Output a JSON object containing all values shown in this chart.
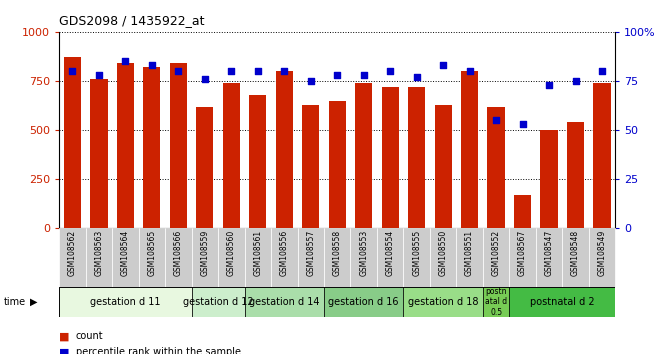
{
  "title": "GDS2098 / 1435922_at",
  "categories": [
    "GSM108562",
    "GSM108563",
    "GSM108564",
    "GSM108565",
    "GSM108566",
    "GSM108559",
    "GSM108560",
    "GSM108561",
    "GSM108556",
    "GSM108557",
    "GSM108558",
    "GSM108553",
    "GSM108554",
    "GSM108555",
    "GSM108550",
    "GSM108551",
    "GSM108552",
    "GSM108567",
    "GSM108547",
    "GSM108548",
    "GSM108549"
  ],
  "counts": [
    870,
    760,
    840,
    820,
    840,
    620,
    740,
    680,
    800,
    630,
    650,
    740,
    720,
    720,
    630,
    800,
    620,
    170,
    500,
    540,
    740
  ],
  "percentile": [
    80,
    78,
    85,
    83,
    80,
    76,
    80,
    80,
    80,
    75,
    78,
    78,
    80,
    77,
    83,
    80,
    55,
    53,
    73,
    75,
    80
  ],
  "group_labels": [
    "gestation d 11",
    "gestation d 12",
    "gestation d 14",
    "gestation d 16",
    "gestation d 18",
    "postn\natal d\n0.5",
    "postnatal d 2"
  ],
  "group_spans": [
    5,
    2,
    3,
    3,
    3,
    1,
    4
  ],
  "group_colors": [
    "#e8f8e8",
    "#ccf0cc",
    "#aae8aa",
    "#88e088",
    "#66d866",
    "#44cc44",
    "#22bb22"
  ],
  "bar_color": "#cc2200",
  "dot_color": "#0000cc",
  "ylim_left": [
    0,
    1000
  ],
  "ylim_right": [
    0,
    100
  ],
  "yticks_left": [
    0,
    250,
    500,
    750,
    1000
  ],
  "ytick_labels_left": [
    "0",
    "250",
    "500",
    "750",
    "1000"
  ],
  "yticks_right": [
    0,
    25,
    50,
    75,
    100
  ],
  "ytick_labels_right": [
    "0",
    "25",
    "50",
    "75",
    "100%"
  ]
}
